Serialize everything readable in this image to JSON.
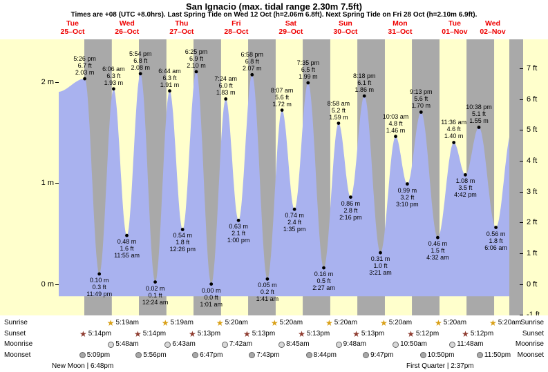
{
  "colors": {
    "day_band": "#ffffcc",
    "night_band": "#a9a9a9",
    "tide_fill": "#a9b2ef",
    "day_label": "#ee0000",
    "sunrise_star": "#d9a017",
    "sunset_star": "#8e3b2f",
    "moonrise_icon": "#d8d8d8",
    "moonset_icon": "#a8a8a8"
  },
  "chart_data": {
    "type": "area",
    "title": "San Ignacio (max. tidal range 2.30m 7.5ft)",
    "subtitle": "Times are +08 (UTC +8.0hrs). Last Spring Tide on Wed 12 Oct (h=2.06m 6.8ft). Next Spring Tide on Fri 28 Oct (h=2.10m 6.9ft).",
    "x_axis": {
      "unit": "hours from Tue 25-Oct 00:00 (+08)",
      "domain": [
        6,
        204
      ]
    },
    "y_axis_left": {
      "unit": "m",
      "range_m": [
        -0.31,
        2.42
      ],
      "ticks": [
        {
          "value": 0,
          "label": "0 m"
        },
        {
          "value": 1,
          "label": "1 m"
        },
        {
          "value": 2,
          "label": "2 m"
        }
      ]
    },
    "y_axis_right": {
      "unit": "ft",
      "ticks": [
        {
          "value": -1,
          "label": "-1 ft"
        },
        {
          "value": 0,
          "label": "0 ft"
        },
        {
          "value": 1,
          "label": "1 ft"
        },
        {
          "value": 2,
          "label": "2 ft"
        },
        {
          "value": 3,
          "label": "3 ft"
        },
        {
          "value": 4,
          "label": "4 ft"
        },
        {
          "value": 5,
          "label": "5 ft"
        },
        {
          "value": 6,
          "label": "6 ft"
        },
        {
          "value": 7,
          "label": "7 ft"
        }
      ]
    },
    "days": [
      {
        "weekday": "Tue",
        "date": "25–Oct",
        "noon_hour": 12
      },
      {
        "weekday": "Wed",
        "date": "26–Oct",
        "noon_hour": 36
      },
      {
        "weekday": "Thu",
        "date": "27–Oct",
        "noon_hour": 60
      },
      {
        "weekday": "Fri",
        "date": "28–Oct",
        "noon_hour": 84
      },
      {
        "weekday": "Sat",
        "date": "29–Oct",
        "noon_hour": 108
      },
      {
        "weekday": "Sun",
        "date": "30–Oct",
        "noon_hour": 132
      },
      {
        "weekday": "Mon",
        "date": "31–Oct",
        "noon_hour": 156
      },
      {
        "weekday": "Tue",
        "date": "01–Nov",
        "noon_hour": 180
      },
      {
        "weekday": "Wed",
        "date": "02–Nov",
        "noon_hour": 204
      }
    ],
    "night_bands_hours": [
      [
        17.23,
        29.32
      ],
      [
        41.23,
        53.32
      ],
      [
        65.22,
        77.33
      ],
      [
        89.22,
        101.33
      ],
      [
        113.22,
        125.33
      ],
      [
        137.22,
        149.33
      ],
      [
        161.2,
        173.33
      ],
      [
        185.2,
        197.33
      ]
    ],
    "tide_events": [
      {
        "hour": 17.43,
        "height_m": 2.03,
        "type": "high",
        "label_lines": [
          "5:26 pm",
          "6.7 ft",
          "2.03 m"
        ]
      },
      {
        "hour": 23.82,
        "height_m": 0.1,
        "type": "low",
        "label_lines": [
          "0.10 m",
          "0.3 ft",
          "11:49 pm"
        ]
      },
      {
        "hour": 30.1,
        "height_m": 1.93,
        "type": "high",
        "label_lines": [
          "6:06 am",
          "6.3 ft",
          "1.93 m"
        ]
      },
      {
        "hour": 35.92,
        "height_m": 0.48,
        "type": "low",
        "label_lines": [
          "0.48 m",
          "1.6 ft",
          "11:55 am"
        ]
      },
      {
        "hour": 41.9,
        "height_m": 2.08,
        "type": "high",
        "label_lines": [
          "5:54 pm",
          "6.8 ft",
          "2.08 m"
        ]
      },
      {
        "hour": 48.4,
        "height_m": 0.02,
        "type": "low",
        "label_lines": [
          "0.02 m",
          "0.1 ft",
          "12:24 am"
        ]
      },
      {
        "hour": 54.73,
        "height_m": 1.91,
        "type": "high",
        "label_lines": [
          "6:44 am",
          "6.3 ft",
          "1.91 m"
        ]
      },
      {
        "hour": 60.43,
        "height_m": 0.54,
        "type": "low",
        "label_lines": [
          "0.54 m",
          "1.8 ft",
          "12:26 pm"
        ]
      },
      {
        "hour": 66.42,
        "height_m": 2.1,
        "type": "high",
        "label_lines": [
          "6:25 pm",
          "6.9 ft",
          "2.10 m"
        ]
      },
      {
        "hour": 73.02,
        "height_m": 0.0,
        "type": "low",
        "label_lines": [
          "0.00 m",
          "0.0 ft",
          "1:01 am"
        ]
      },
      {
        "hour": 79.4,
        "height_m": 1.83,
        "type": "high",
        "label_lines": [
          "7:24 am",
          "6.0 ft",
          "1.83 m"
        ]
      },
      {
        "hour": 85.0,
        "height_m": 0.63,
        "type": "low",
        "label_lines": [
          "0.63 m",
          "2.1 ft",
          "1:00 pm"
        ]
      },
      {
        "hour": 90.97,
        "height_m": 2.07,
        "type": "high",
        "label_lines": [
          "6:58 pm",
          "6.8 ft",
          "2.07 m"
        ]
      },
      {
        "hour": 97.68,
        "height_m": 0.05,
        "type": "low",
        "label_lines": [
          "0.05 m",
          "0.2 ft",
          "1:41 am"
        ]
      },
      {
        "hour": 104.12,
        "height_m": 1.72,
        "type": "high",
        "label_lines": [
          "8:07 am",
          "5.6 ft",
          "1.72 m"
        ]
      },
      {
        "hour": 109.58,
        "height_m": 0.74,
        "type": "low",
        "label_lines": [
          "0.74 m",
          "2.4 ft",
          "1:35 pm"
        ]
      },
      {
        "hour": 115.58,
        "height_m": 1.99,
        "type": "high",
        "label_lines": [
          "7:35 pm",
          "6.5 ft",
          "1.99 m"
        ]
      },
      {
        "hour": 122.45,
        "height_m": 0.16,
        "type": "low",
        "label_lines": [
          "0.16 m",
          "0.5 ft",
          "2:27 am"
        ]
      },
      {
        "hour": 128.97,
        "height_m": 1.59,
        "type": "high",
        "label_lines": [
          "8:58 am",
          "5.2 ft",
          "1.59 m"
        ]
      },
      {
        "hour": 134.27,
        "height_m": 0.86,
        "type": "low",
        "label_lines": [
          "0.86 m",
          "2.8 ft",
          "2:16 pm"
        ]
      },
      {
        "hour": 140.3,
        "height_m": 1.86,
        "type": "high",
        "label_lines": [
          "8:18 pm",
          "6.1 ft",
          "1.86 m"
        ]
      },
      {
        "hour": 147.35,
        "height_m": 0.31,
        "type": "low",
        "label_lines": [
          "0.31 m",
          "1.0 ft",
          "3:21 am"
        ]
      },
      {
        "hour": 154.05,
        "height_m": 1.46,
        "type": "high",
        "label_lines": [
          "10:03 am",
          "4.8 ft",
          "1.46 m"
        ]
      },
      {
        "hour": 159.17,
        "height_m": 0.99,
        "type": "low",
        "label_lines": [
          "0.99 m",
          "3.2 ft",
          "3:10 pm"
        ]
      },
      {
        "hour": 165.22,
        "height_m": 1.7,
        "type": "high",
        "label_lines": [
          "9:13 pm",
          "5.6 ft",
          "1.70 m"
        ]
      },
      {
        "hour": 172.53,
        "height_m": 0.46,
        "type": "low",
        "label_lines": [
          "0.46 m",
          "1.5 ft",
          "4:32 am"
        ]
      },
      {
        "hour": 179.6,
        "height_m": 1.4,
        "type": "high",
        "label_lines": [
          "11:36 am",
          "4.6 ft",
          "1.40 m"
        ]
      },
      {
        "hour": 184.7,
        "height_m": 1.08,
        "type": "low",
        "label_lines": [
          "1.08 m",
          "3.5 ft",
          "4:42 pm"
        ]
      },
      {
        "hour": 190.63,
        "height_m": 1.55,
        "type": "high",
        "label_lines": [
          "10:38 pm",
          "5.1 ft",
          "1.55 m"
        ]
      },
      {
        "hour": 198.1,
        "height_m": 0.56,
        "type": "low",
        "label_lines": [
          "0.56 m",
          "1.8 ft",
          "6:06 am"
        ]
      }
    ],
    "curve_padding_events": [
      {
        "hour": 5.4,
        "height_m": 1.9
      },
      {
        "hour": 205.2,
        "height_m": 1.52
      }
    ],
    "fill_base_m": -0.12
  },
  "astro": {
    "rows": [
      {
        "name": "Sunrise",
        "icon": "sunrise-star-icon",
        "events": [
          {
            "time": "5:19am",
            "hour": 29.32
          },
          {
            "time": "5:19am",
            "hour": 53.32
          },
          {
            "time": "5:20am",
            "hour": 77.33
          },
          {
            "time": "5:20am",
            "hour": 101.33
          },
          {
            "time": "5:20am",
            "hour": 125.33
          },
          {
            "time": "5:20am",
            "hour": 149.33
          },
          {
            "time": "5:20am",
            "hour": 173.33
          },
          {
            "time": "5:20am",
            "hour": 197.33
          }
        ]
      },
      {
        "name": "Sunset",
        "icon": "sunset-star-icon",
        "events": [
          {
            "time": "5:14pm",
            "hour": 17.23
          },
          {
            "time": "5:14pm",
            "hour": 41.23
          },
          {
            "time": "5:13pm",
            "hour": 65.22
          },
          {
            "time": "5:13pm",
            "hour": 89.22
          },
          {
            "time": "5:13pm",
            "hour": 113.22
          },
          {
            "time": "5:13pm",
            "hour": 137.22
          },
          {
            "time": "5:12pm",
            "hour": 161.2
          },
          {
            "time": "5:12pm",
            "hour": 185.2
          }
        ]
      },
      {
        "name": "Moonrise",
        "icon": "moonrise-icon",
        "events": [
          {
            "time": "5:48am",
            "hour": 29.8
          },
          {
            "time": "6:43am",
            "hour": 54.72
          },
          {
            "time": "7:42am",
            "hour": 79.7
          },
          {
            "time": "8:45am",
            "hour": 104.75
          },
          {
            "time": "9:48am",
            "hour": 129.8
          },
          {
            "time": "10:50am",
            "hour": 154.83
          },
          {
            "time": "11:48am",
            "hour": 179.8
          }
        ]
      },
      {
        "name": "Moonset",
        "icon": "moonset-icon",
        "events": [
          {
            "time": "5:09pm",
            "hour": 17.15
          },
          {
            "time": "5:56pm",
            "hour": 41.93
          },
          {
            "time": "6:47pm",
            "hour": 66.78
          },
          {
            "time": "7:43pm",
            "hour": 91.72
          },
          {
            "time": "8:44pm",
            "hour": 116.73
          },
          {
            "time": "9:47pm",
            "hour": 141.78
          },
          {
            "time": "10:50pm",
            "hour": 166.83
          },
          {
            "time": "11:50pm",
            "hour": 191.83
          }
        ]
      }
    ],
    "phases": [
      {
        "label": "New Moon | 6:48pm"
      },
      {
        "label": "First Quarter | 2:37pm"
      }
    ]
  }
}
